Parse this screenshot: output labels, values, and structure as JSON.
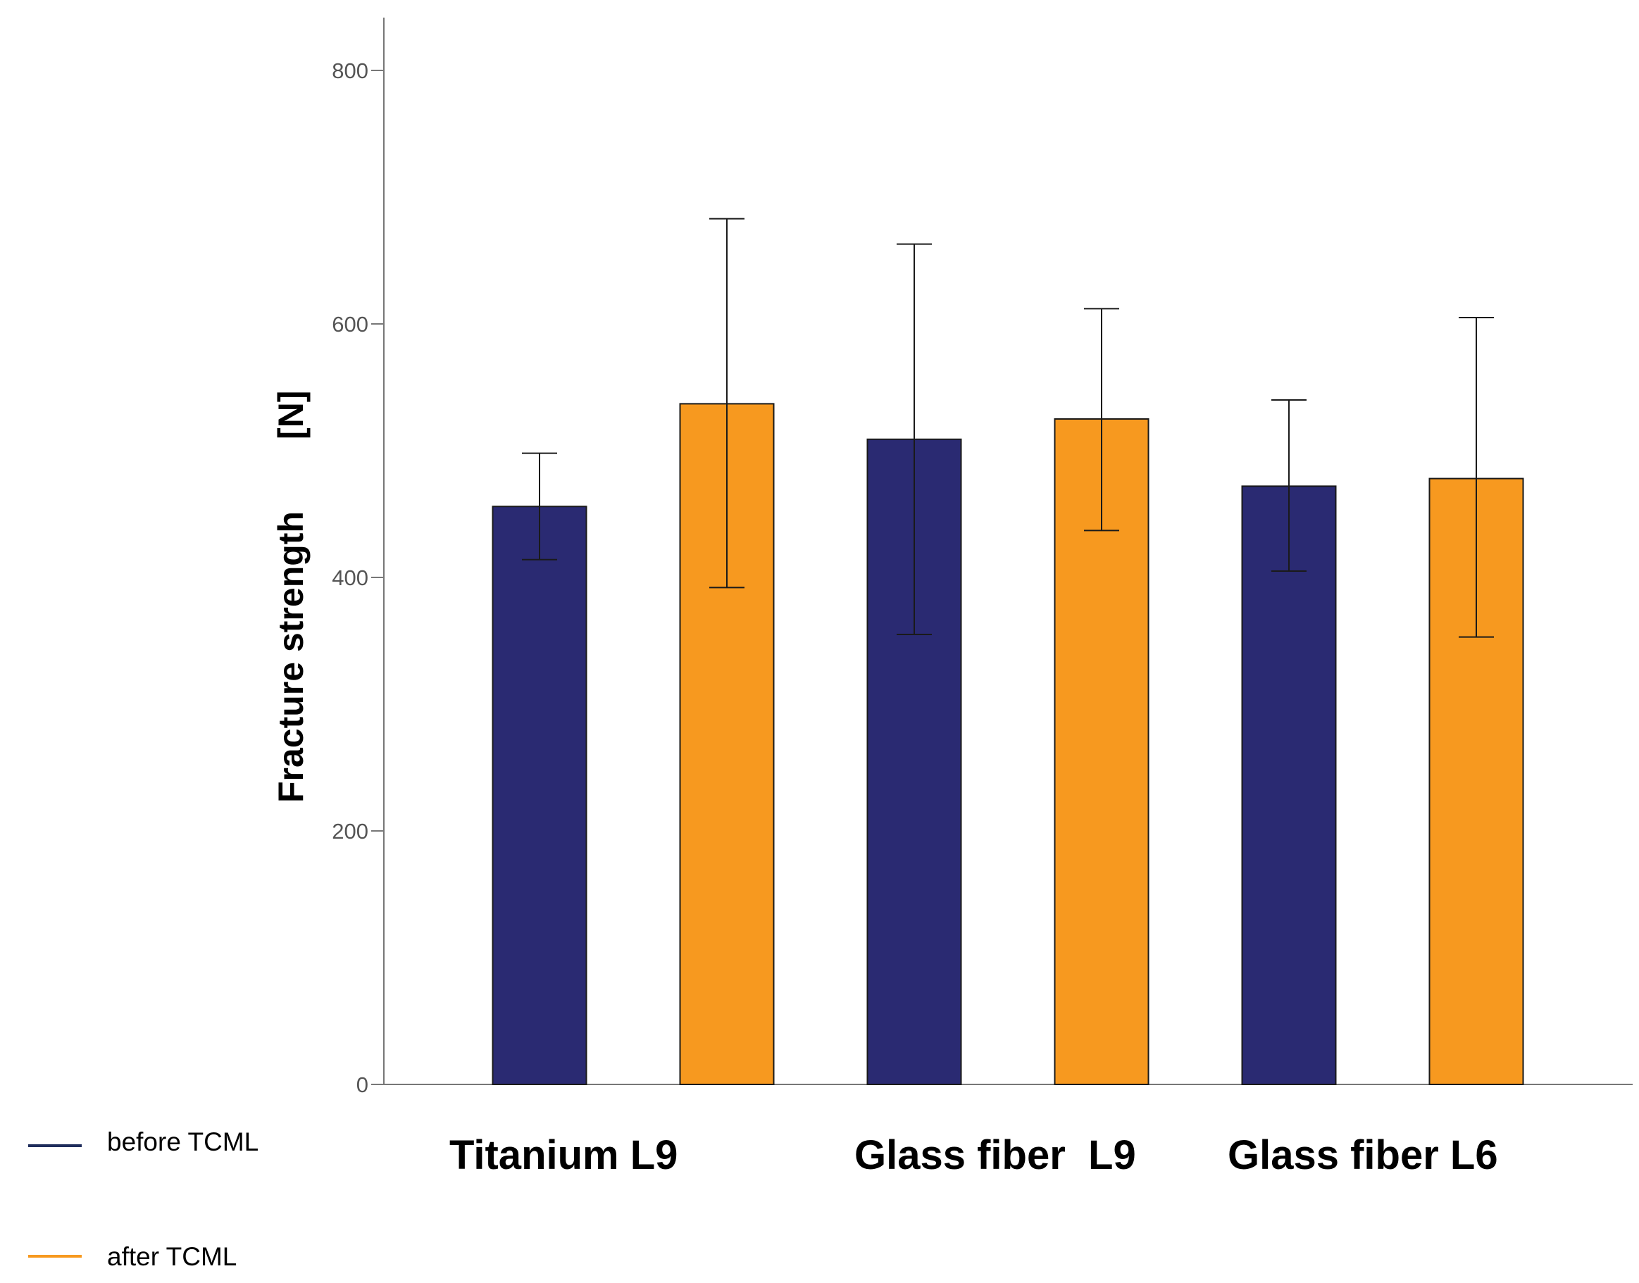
{
  "chart_data": {
    "type": "bar",
    "categories": [
      "Titanium L9",
      "Glass fiber  L9",
      "Glass fiber L6"
    ],
    "series": [
      {
        "name": "before TCML",
        "color": "#2a2a72",
        "values": [
          456,
          509,
          472
        ],
        "error_low": [
          414,
          355,
          405
        ],
        "error_high": [
          498,
          663,
          540
        ]
      },
      {
        "name": "after TCML",
        "color": "#f7991f",
        "values": [
          537,
          525,
          478
        ],
        "error_low": [
          392,
          437,
          353
        ],
        "error_high": [
          683,
          612,
          605
        ]
      }
    ],
    "ylabel_parts": [
      "Fracture  strength",
      "[N]"
    ],
    "yticks": [
      0,
      200,
      400,
      600,
      800
    ],
    "ylim": [
      0,
      800
    ],
    "grid": false,
    "legend_position": "bottom-left",
    "legend_line_colors": [
      "#1f2d5c",
      "#f7991f"
    ]
  }
}
